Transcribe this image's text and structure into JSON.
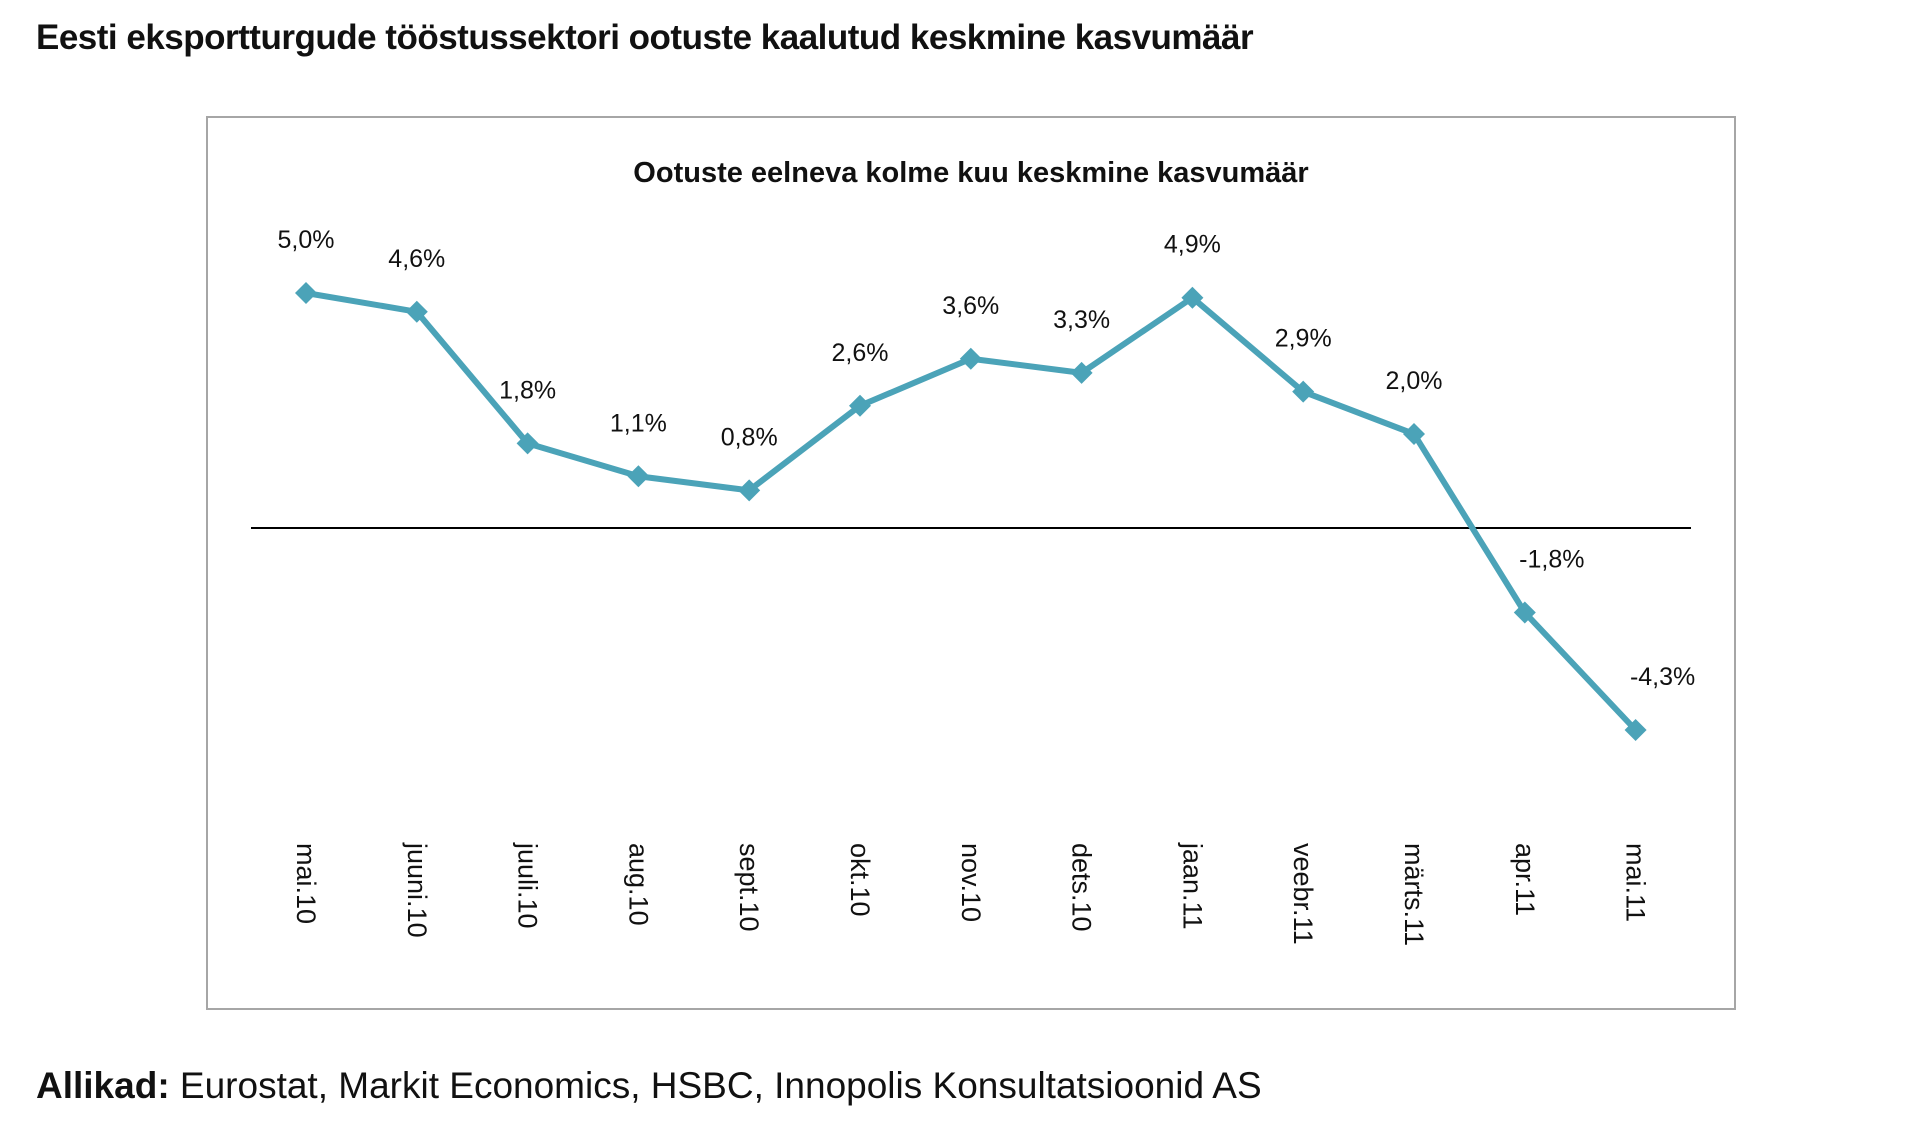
{
  "page_title": "Eesti eksportturgude tööstussektori ootuste kaalutud keskmine kasvumäär",
  "footer": {
    "label": "Allikad:",
    "text": " Eurostat, Markit Economics, HSBC, Innopolis Konsultatsioonid AS"
  },
  "chart_data": {
    "type": "line",
    "title": "Ootuste eelneva kolme kuu keskmine kasvumäär",
    "xlabel": "",
    "ylabel": "",
    "categories": [
      "mai.10",
      "juuni.10",
      "juuli.10",
      "aug.10",
      "sept.10",
      "okt.10",
      "nov.10",
      "dets.10",
      "jaan.11",
      "veebr.11",
      "märts.11",
      "apr.11",
      "mai.11"
    ],
    "values": [
      5.0,
      4.6,
      1.8,
      1.1,
      0.8,
      2.6,
      3.6,
      3.3,
      4.9,
      2.9,
      2.0,
      -1.8,
      -4.3
    ],
    "data_labels": [
      "5,0%",
      "4,6%",
      "1,8%",
      "1,1%",
      "0,8%",
      "2,6%",
      "3,6%",
      "3,3%",
      "4,9%",
      "2,9%",
      "2,0%",
      "-1,8%",
      "-4,3%"
    ],
    "ylim": [
      -4.3,
      5.0
    ],
    "grid": false,
    "legend": "none",
    "series_color": "#4BA3B8",
    "zero_line_color": "#000000"
  }
}
